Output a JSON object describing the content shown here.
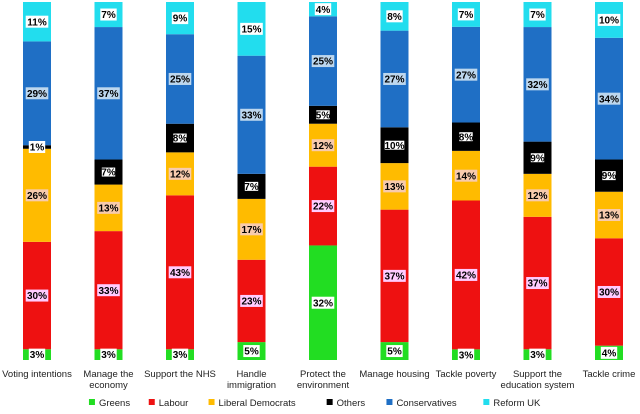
{
  "chart_data": {
    "type": "bar",
    "stacked": true,
    "percent_stacked": true,
    "categories": [
      [
        "Voting intentions"
      ],
      [
        "Manage the",
        "economy"
      ],
      [
        "Support the NHS"
      ],
      [
        "Handle",
        "immigration"
      ],
      [
        "Protect the",
        "environment"
      ],
      [
        "Manage housing"
      ],
      [
        "Tackle poverty"
      ],
      [
        "Support the",
        "education system"
      ],
      [
        "Tackle crime"
      ]
    ],
    "series": [
      {
        "name": "Greens",
        "color": "#22dd22",
        "label_bg": "#ffffff",
        "values": [
          3,
          3,
          3,
          5,
          32,
          5,
          3,
          3,
          4
        ]
      },
      {
        "name": "Labour",
        "color": "#ee1111",
        "label_bg": "#ffccff",
        "values": [
          30,
          33,
          43,
          23,
          22,
          37,
          42,
          37,
          30
        ]
      },
      {
        "name": "Liberal Democrats",
        "color": "#ffbb00",
        "label_bg": "#f8cbad",
        "values": [
          26,
          13,
          12,
          17,
          12,
          13,
          14,
          12,
          13
        ]
      },
      {
        "name": "Others",
        "color": "#000000",
        "label_bg": "#ffffff",
        "values": [
          1,
          7,
          8,
          7,
          5,
          10,
          8,
          9,
          9
        ]
      },
      {
        "name": "Conservatives",
        "color": "#1f6fc5",
        "label_bg": "#bdd7ee",
        "values": [
          29,
          37,
          25,
          33,
          25,
          27,
          27,
          32,
          34
        ]
      },
      {
        "name": "Reform UK",
        "color": "#22ddee",
        "label_bg": "#ffffff",
        "values": [
          11,
          7,
          9,
          15,
          4,
          8,
          7,
          7,
          10
        ]
      }
    ],
    "data_label_suffix": "%",
    "legend_position": "bottom",
    "grid": false
  }
}
